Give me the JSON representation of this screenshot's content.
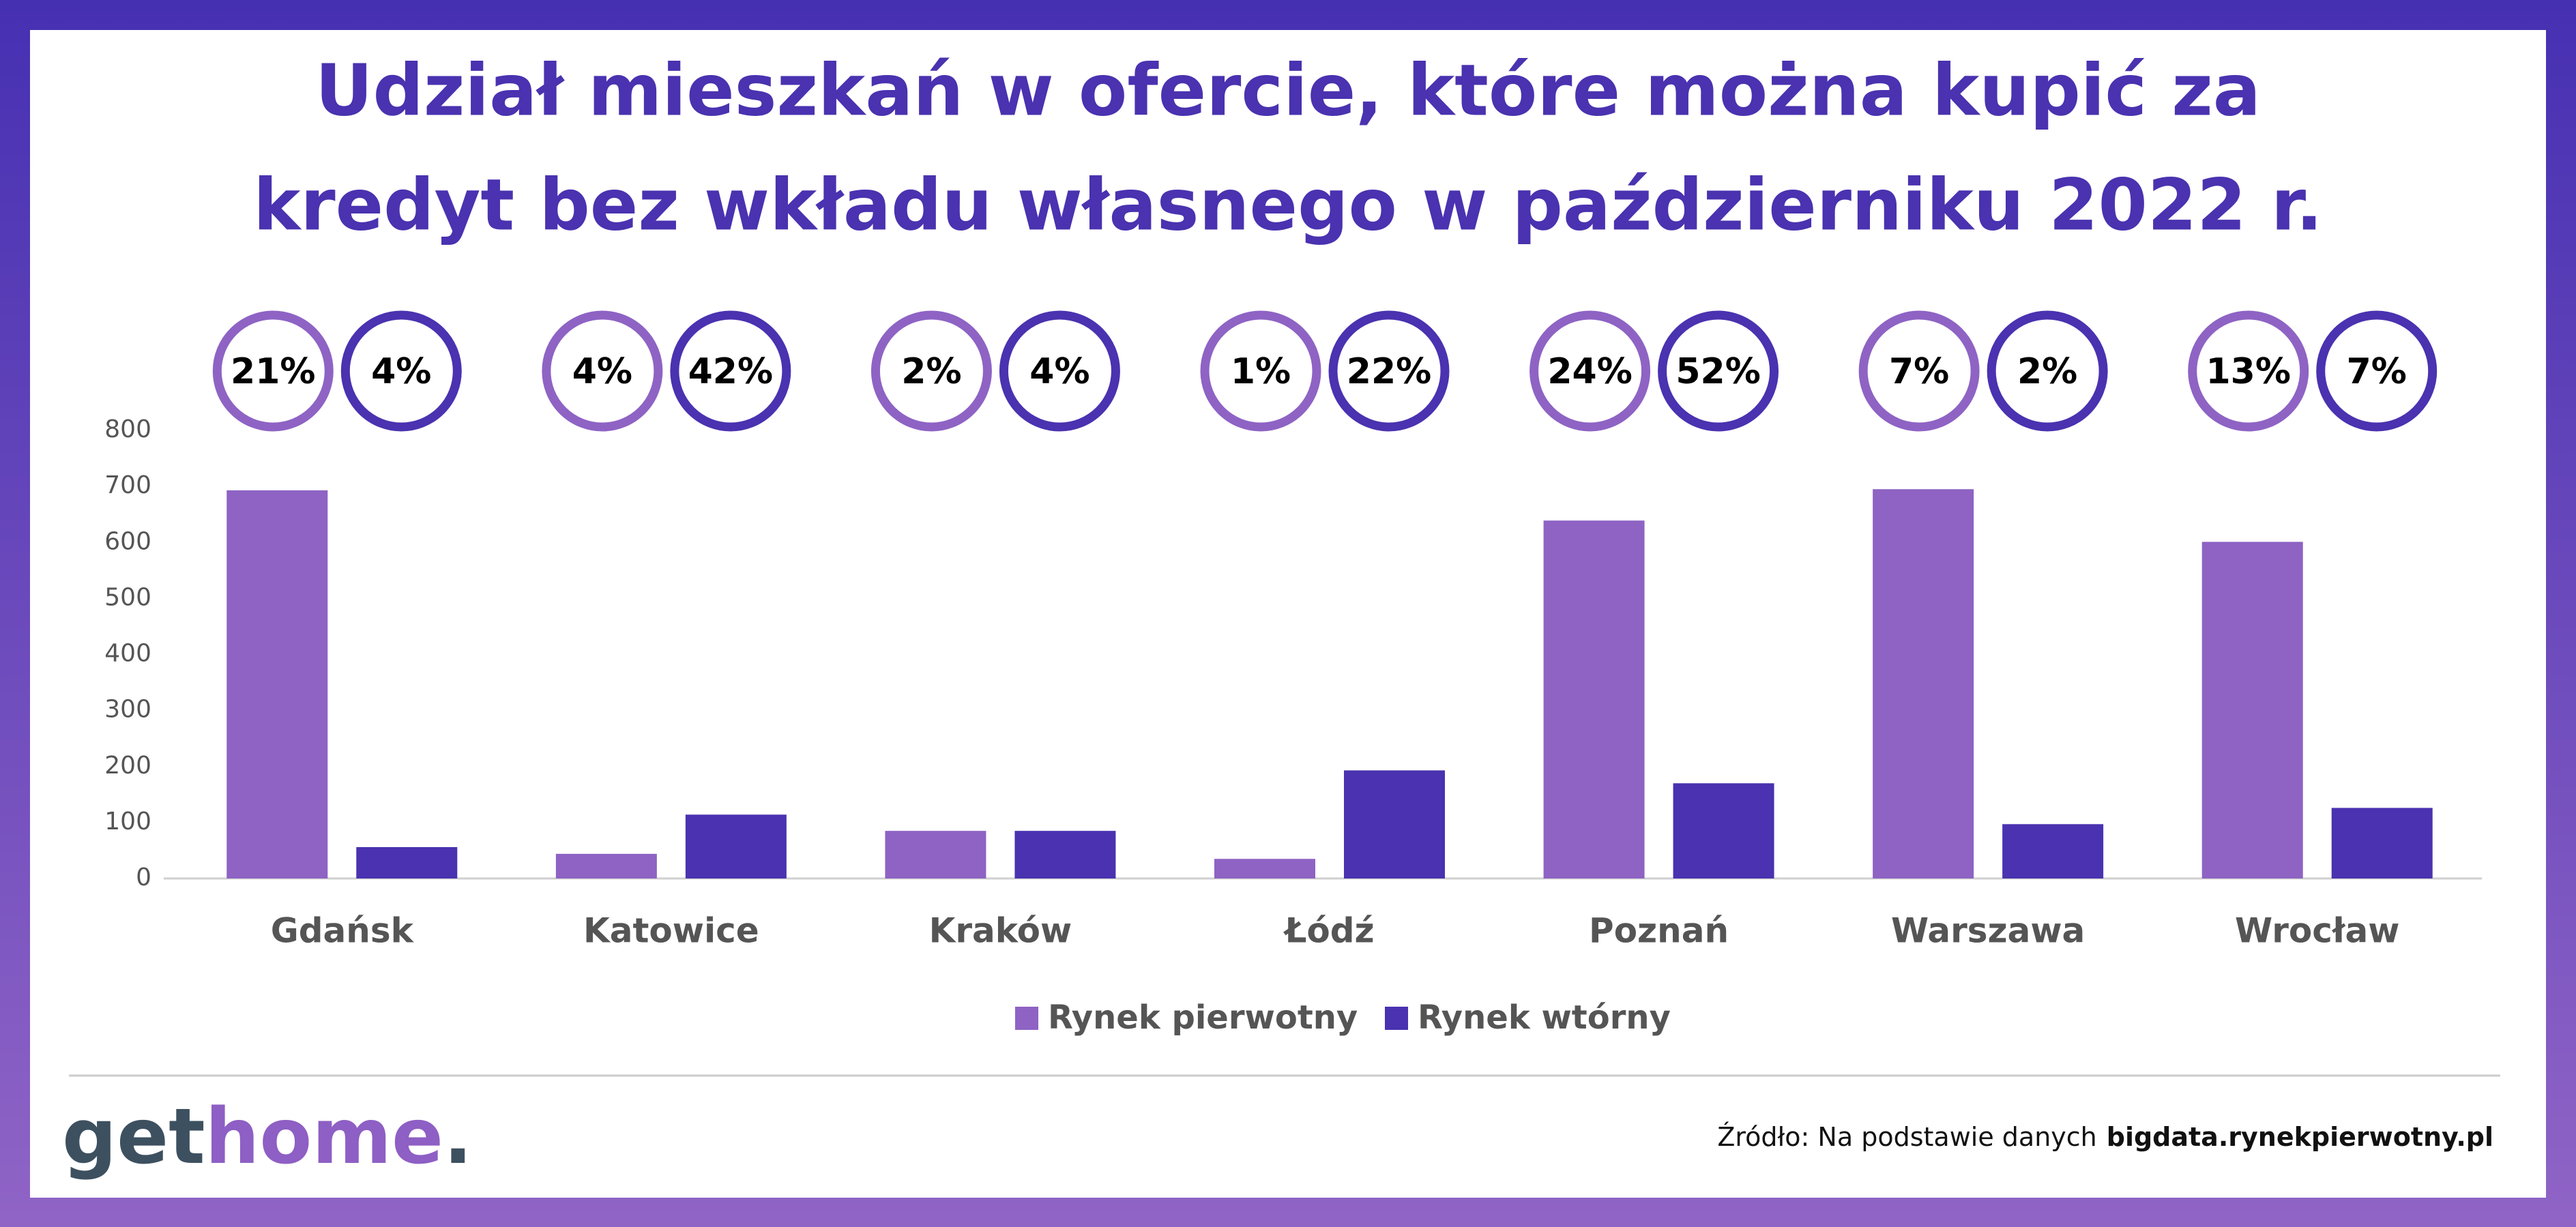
{
  "chart_data": {
    "type": "bar",
    "title": [
      "Udział mieszkań w ofercie, które można kupić za",
      "kredyt bez wkładu własnego w październiku 2022 r."
    ],
    "categories": [
      "Gdańsk",
      "Katowice",
      "Kraków",
      "Łódź",
      "Poznań",
      "Warszawa",
      "Wrocław"
    ],
    "series": [
      {
        "name": "Rynek pierwotny",
        "color": "#8e63c4",
        "values": [
          693,
          44,
          85,
          35,
          639,
          695,
          601
        ],
        "shares": {
          "values": [
            21,
            4,
            2,
            1,
            24,
            7,
            13
          ],
          "value_labels": [
            "21%",
            "4%",
            "2%",
            "1%",
            "24%",
            "7%",
            "13%"
          ]
        }
      },
      {
        "name": "Rynek wtórny",
        "color": "#4a32b0",
        "values": [
          56,
          114,
          85,
          193,
          170,
          97,
          126
        ],
        "shares": {
          "values": [
            4,
            42,
            4,
            22,
            52,
            2,
            7
          ],
          "value_labels": [
            "4%",
            "42%",
            "4%",
            "22%",
            "52%",
            "2%",
            "7%"
          ]
        }
      }
    ],
    "ylim": [
      0,
      800
    ],
    "yticks": [
      0,
      100,
      200,
      300,
      400,
      500,
      600,
      700,
      800
    ],
    "grid": false,
    "legend": "bottom"
  },
  "footer": {
    "logo_parts": [
      "get",
      "home",
      "."
    ],
    "source_prefix": "Źródło: Na podstawie danych",
    "source_site": "bigdata.rynekpierwotny.pl"
  }
}
